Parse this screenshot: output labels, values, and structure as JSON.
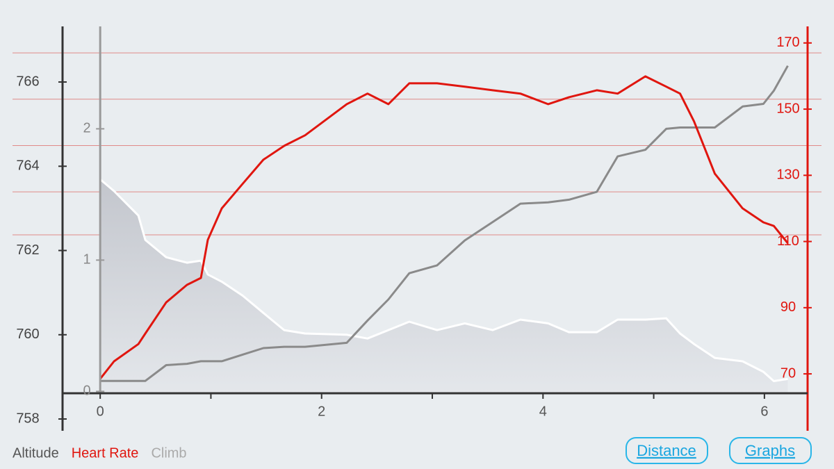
{
  "chart_data": {
    "type": "line",
    "x": [
      0,
      0.125,
      0.345,
      0.408,
      0.596,
      0.784,
      0.91,
      0.972,
      1.098,
      1.286,
      1.474,
      1.662,
      1.851,
      2.227,
      2.415,
      2.603,
      2.792,
      3.043,
      3.294,
      3.545,
      3.796,
      4.046,
      4.235,
      4.486,
      4.674,
      4.925,
      5.113,
      5.238,
      5.364,
      5.552,
      5.803,
      5.991,
      6.085,
      6.211
    ],
    "series": [
      {
        "name": "Altitude",
        "color": "#ffffff",
        "fill": "#c9ccd2",
        "axis": "y",
        "values": [
          763.69,
          763.41,
          762.83,
          762.25,
          761.84,
          761.71,
          761.76,
          761.43,
          761.26,
          760.93,
          760.52,
          760.11,
          760.03,
          760.0,
          759.91,
          760.11,
          760.31,
          760.11,
          760.27,
          760.11,
          760.36,
          760.27,
          760.06,
          760.06,
          760.36,
          760.36,
          760.39,
          760.03,
          759.78,
          759.45,
          759.37,
          759.12,
          758.9,
          758.95
        ]
      },
      {
        "name": "Heart Rate",
        "color": "#e0160f",
        "axis": "y2",
        "values": [
          68.5,
          73.8,
          79.0,
          82.2,
          91.6,
          96.9,
          99.0,
          110.5,
          120.0,
          127.4,
          134.7,
          138.9,
          142.1,
          151.5,
          154.7,
          151.5,
          157.8,
          157.8,
          156.8,
          155.7,
          154.7,
          151.5,
          153.6,
          155.7,
          154.7,
          159.9,
          156.8,
          154.7,
          146.3,
          130.5,
          120.0,
          115.8,
          114.7,
          109.5
        ]
      },
      {
        "name": "Climb",
        "color": "#8a8a8a",
        "axis": "y3",
        "values": [
          0.08,
          0.08,
          0.08,
          0.08,
          0.2,
          0.21,
          0.23,
          0.23,
          0.23,
          0.28,
          0.33,
          0.34,
          0.34,
          0.37,
          0.54,
          0.7,
          0.9,
          0.96,
          1.15,
          1.29,
          1.43,
          1.44,
          1.46,
          1.52,
          1.79,
          1.84,
          2.0,
          2.01,
          2.01,
          2.01,
          2.17,
          2.19,
          2.29,
          2.48
        ]
      }
    ],
    "xlim": [
      -0.34,
      6.39
    ],
    "xticks": [
      0,
      2,
      4,
      6
    ],
    "minor_xticks": [
      1,
      3,
      5
    ],
    "ylim": [
      757.72,
      767.32
    ],
    "yticks": [
      758,
      760,
      762,
      764,
      766
    ],
    "y2lim": [
      52.8,
      175.0
    ],
    "y2ticks": [
      70,
      90,
      110,
      130,
      150,
      170
    ],
    "y2grid": [
      112,
      125,
      139,
      153,
      167
    ],
    "y3lim": [
      -0.3,
      2.78
    ],
    "y3ticks": [
      0,
      1,
      2
    ],
    "buttons": [
      "Distance",
      "Graphs"
    ]
  }
}
